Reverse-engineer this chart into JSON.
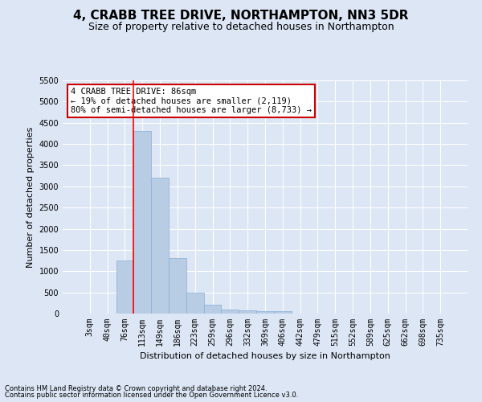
{
  "title": "4, CRABB TREE DRIVE, NORTHAMPTON, NN3 5DR",
  "subtitle": "Size of property relative to detached houses in Northampton",
  "xlabel": "Distribution of detached houses by size in Northampton",
  "ylabel": "Number of detached properties",
  "categories": [
    "3sqm",
    "40sqm",
    "76sqm",
    "113sqm",
    "149sqm",
    "186sqm",
    "223sqm",
    "259sqm",
    "296sqm",
    "332sqm",
    "369sqm",
    "406sqm",
    "442sqm",
    "479sqm",
    "515sqm",
    "552sqm",
    "589sqm",
    "625sqm",
    "662sqm",
    "698sqm",
    "735sqm"
  ],
  "values": [
    0,
    0,
    1250,
    4300,
    3200,
    1300,
    500,
    200,
    100,
    75,
    50,
    50,
    0,
    0,
    0,
    0,
    0,
    0,
    0,
    0,
    0
  ],
  "bar_color": "#b8cce4",
  "bar_edge_color": "#8aafd4",
  "red_line_x": 2.5,
  "ylim": [
    0,
    5500
  ],
  "yticks": [
    0,
    500,
    1000,
    1500,
    2000,
    2500,
    3000,
    3500,
    4000,
    4500,
    5000,
    5500
  ],
  "annotation_text": "4 CRABB TREE DRIVE: 86sqm\n← 19% of detached houses are smaller (2,119)\n80% of semi-detached houses are larger (8,733) →",
  "annotation_box_facecolor": "#ffffff",
  "annotation_box_edgecolor": "#cc0000",
  "footnote1": "Contains HM Land Registry data © Crown copyright and database right 2024.",
  "footnote2": "Contains public sector information licensed under the Open Government Licence v3.0.",
  "background_color": "#dce6f5",
  "grid_color": "#ffffff",
  "title_fontsize": 11,
  "subtitle_fontsize": 9,
  "axis_label_fontsize": 8,
  "tick_fontsize": 7,
  "annotation_fontsize": 7.5,
  "footnote_fontsize": 6
}
